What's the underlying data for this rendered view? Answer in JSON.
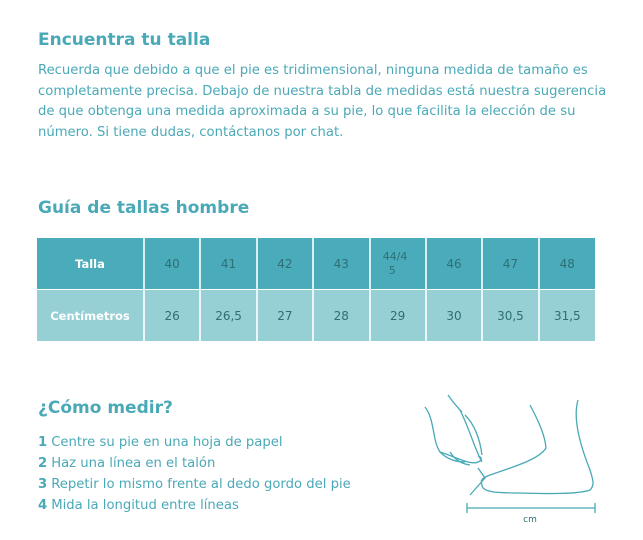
{
  "intro": {
    "title": "Encuentra tu talla",
    "text": "Recuerda que debido a que el pie es tridimensional, ninguna medida de tamaño es completamente precisa. Debajo de nuestra tabla de medidas está nuestra sugerencia de que obtenga una medida aproximada a su pie, lo que facilita la elección de su número. Si tiene dudas, contáctanos por chat."
  },
  "guide": {
    "title": "Guía de tallas hombre",
    "rows": [
      {
        "label": "Talla",
        "values": [
          "40",
          "41",
          "42",
          "43",
          "44/45",
          "46",
          "47",
          "48"
        ]
      },
      {
        "label": "Centímetros",
        "values": [
          "26",
          "26,5",
          "27",
          "28",
          "29",
          "30",
          "30,5",
          "31,5"
        ]
      }
    ],
    "split_size": {
      "top": "44",
      "bottom": "45"
    }
  },
  "how": {
    "title": "¿Cómo medir?",
    "steps": [
      {
        "n": "1",
        "text": "Centre su pie en una hoja de papel"
      },
      {
        "n": "2",
        "text": "Haz una línea en el talón"
      },
      {
        "n": "3",
        "text": "Repetir lo mismo frente al dedo gordo del pie"
      },
      {
        "n": "4",
        "text": "Mida la longitud entre líneas"
      }
    ],
    "unit": "cm"
  },
  "colors": {
    "accent": "#4aa9b7",
    "header_row": "#4aacbb",
    "second_row": "#96cfd4"
  }
}
